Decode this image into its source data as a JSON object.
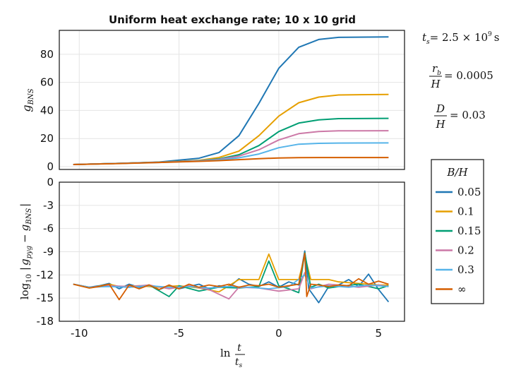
{
  "chart_data": {
    "title": "Uniform heat exchange rate; 10 x 10 grid",
    "colors": {
      "0.05": "#1f77b4",
      "0.1": "#e69f00",
      "0.15": "#009e73",
      "0.2": "#cc79a7",
      "0.3": "#56b4e9",
      "inf": "#d55e00"
    },
    "top": {
      "type": "line",
      "ylabel": "g_BNS",
      "xlim": [
        -11.0,
        6.3
      ],
      "ylim": [
        -2,
        97
      ],
      "yticks": [
        "0",
        "20",
        "40",
        "60",
        "80"
      ],
      "series": [
        {
          "name": "0.05",
          "values": [
            [
              -10.3,
              1.5
            ],
            [
              -8,
              2.3
            ],
            [
              -6,
              3.3
            ],
            [
              -4,
              6
            ],
            [
              -3,
              10
            ],
            [
              -2,
              22
            ],
            [
              -1,
              45
            ],
            [
              0,
              70
            ],
            [
              1,
              85
            ],
            [
              2,
              90.5
            ],
            [
              3,
              92
            ],
            [
              5.5,
              92.4
            ]
          ]
        },
        {
          "name": "0.1",
          "values": [
            [
              -10.3,
              1.5
            ],
            [
              -8,
              2.3
            ],
            [
              -6,
              3.2
            ],
            [
              -4,
              4.5
            ],
            [
              -3,
              6.5
            ],
            [
              -2,
              11
            ],
            [
              -1,
              22
            ],
            [
              0,
              36
            ],
            [
              1,
              45.5
            ],
            [
              2,
              49.5
            ],
            [
              3,
              51
            ],
            [
              5.5,
              51.4
            ]
          ]
        },
        {
          "name": "0.15",
          "values": [
            [
              -10.3,
              1.5
            ],
            [
              -8,
              2.3
            ],
            [
              -6,
              3.2
            ],
            [
              -4,
              4.3
            ],
            [
              -3,
              5.5
            ],
            [
              -2,
              8.5
            ],
            [
              -1,
              15
            ],
            [
              0,
              25
            ],
            [
              1,
              31
            ],
            [
              2,
              33.3
            ],
            [
              3,
              34.2
            ],
            [
              5.5,
              34.4
            ]
          ]
        },
        {
          "name": "0.2",
          "values": [
            [
              -10.3,
              1.5
            ],
            [
              -8,
              2.3
            ],
            [
              -6,
              3.1
            ],
            [
              -4,
              4.2
            ],
            [
              -3,
              5.2
            ],
            [
              -2,
              7.5
            ],
            [
              -1,
              12
            ],
            [
              0,
              19
            ],
            [
              1,
              23.5
            ],
            [
              2,
              25
            ],
            [
              3,
              25.5
            ],
            [
              5.5,
              25.6
            ]
          ]
        },
        {
          "name": "0.3",
          "values": [
            [
              -10.3,
              1.5
            ],
            [
              -8,
              2.3
            ],
            [
              -6,
              3.0
            ],
            [
              -4,
              4
            ],
            [
              -3,
              4.8
            ],
            [
              -2,
              6.3
            ],
            [
              -1,
              9
            ],
            [
              0,
              13.5
            ],
            [
              1,
              16
            ],
            [
              2,
              16.6
            ],
            [
              3,
              16.8
            ],
            [
              5.5,
              16.9
            ]
          ]
        },
        {
          "name": "inf",
          "values": [
            [
              -10.3,
              1.5
            ],
            [
              -8,
              2.2
            ],
            [
              -6,
              3
            ],
            [
              -4,
              3.8
            ],
            [
              -3,
              4.3
            ],
            [
              -2,
              5
            ],
            [
              -1,
              5.7
            ],
            [
              0,
              6.2
            ],
            [
              1,
              6.4
            ],
            [
              2,
              6.5
            ],
            [
              3,
              6.5
            ],
            [
              5.5,
              6.5
            ]
          ]
        }
      ]
    },
    "bottom": {
      "type": "line",
      "ylabel": "log10 |g_pyg − g_BNS|",
      "xlabel": "ln t/t_s",
      "xlim": [
        -11.0,
        6.3
      ],
      "ylim": [
        -18,
        0
      ],
      "xticks": [
        "-10",
        "-5",
        "0",
        "5"
      ],
      "yticks": [
        "-18",
        "-15",
        "-12",
        "-9",
        "-6",
        "-3",
        "0"
      ],
      "series": [
        {
          "name": "0.05",
          "values": [
            [
              -10.3,
              -13.2
            ],
            [
              -9.5,
              -13.6
            ],
            [
              -9,
              -13.4
            ],
            [
              -8.5,
              -13.1
            ],
            [
              -8,
              -13.8
            ],
            [
              -7.5,
              -13.2
            ],
            [
              -7,
              -13.6
            ],
            [
              -6.5,
              -13.3
            ],
            [
              -6,
              -13.9
            ],
            [
              -5.5,
              -13.4
            ],
            [
              -5,
              -13.8
            ],
            [
              -4.5,
              -13.5
            ],
            [
              -4,
              -13.2
            ],
            [
              -3.5,
              -13.8
            ],
            [
              -3,
              -13.4
            ],
            [
              -2.5,
              -13.6
            ],
            [
              -2,
              -12.5
            ],
            [
              -1.5,
              -13.2
            ],
            [
              -1,
              -13.5
            ],
            [
              -0.5,
              -12.9
            ],
            [
              0,
              -13.6
            ],
            [
              0.5,
              -12.9
            ],
            [
              1,
              -13.3
            ],
            [
              1.3,
              -8.9
            ],
            [
              1.5,
              -13.8
            ],
            [
              2,
              -15.6
            ],
            [
              2.5,
              -13.5
            ],
            [
              3,
              -13.3
            ],
            [
              3.5,
              -12.6
            ],
            [
              4,
              -13.5
            ],
            [
              4.5,
              -11.9
            ],
            [
              5,
              -13.9
            ],
            [
              5.5,
              -15.5
            ]
          ]
        },
        {
          "name": "0.1",
          "values": [
            [
              -10.3,
              -13.2
            ],
            [
              -9.5,
              -13.7
            ],
            [
              -8.5,
              -13.2
            ],
            [
              -8,
              -13.5
            ],
            [
              -7,
              -13.4
            ],
            [
              -6,
              -13.6
            ],
            [
              -5,
              -13.4
            ],
            [
              -4,
              -13.7
            ],
            [
              -3,
              -14.2
            ],
            [
              -2,
              -12.6
            ],
            [
              -1,
              -12.6
            ],
            [
              -0.5,
              -9.3
            ],
            [
              0,
              -12.6
            ],
            [
              1,
              -12.6
            ],
            [
              1.3,
              -9.5
            ],
            [
              1.6,
              -12.6
            ],
            [
              2.5,
              -12.6
            ],
            [
              3,
              -12.9
            ],
            [
              4,
              -13.1
            ],
            [
              5,
              -13.3
            ],
            [
              5.5,
              -13.3
            ]
          ]
        },
        {
          "name": "0.15",
          "values": [
            [
              -10.3,
              -13.2
            ],
            [
              -9.5,
              -13.6
            ],
            [
              -8.5,
              -13.4
            ],
            [
              -7.5,
              -13.6
            ],
            [
              -6.5,
              -13.3
            ],
            [
              -5.5,
              -14.8
            ],
            [
              -5,
              -13.4
            ],
            [
              -4,
              -14.1
            ],
            [
              -3,
              -13.6
            ],
            [
              -2,
              -13.7
            ],
            [
              -1,
              -13.5
            ],
            [
              -0.5,
              -10.2
            ],
            [
              0,
              -13.4
            ],
            [
              0.5,
              -13.8
            ],
            [
              1,
              -14.3
            ],
            [
              1.3,
              -9.1
            ],
            [
              1.6,
              -13.6
            ],
            [
              2,
              -13.2
            ],
            [
              2.5,
              -13.7
            ],
            [
              3,
              -13.5
            ],
            [
              4,
              -13.2
            ],
            [
              4.5,
              -13.5
            ],
            [
              5,
              -13.8
            ],
            [
              5.5,
              -13.4
            ]
          ]
        },
        {
          "name": "0.2",
          "values": [
            [
              -10.3,
              -13.2
            ],
            [
              -9.5,
              -13.6
            ],
            [
              -8.5,
              -13.4
            ],
            [
              -7.5,
              -13.5
            ],
            [
              -6.5,
              -13.3
            ],
            [
              -5.5,
              -13.8
            ],
            [
              -4.5,
              -13.4
            ],
            [
              -3.5,
              -13.9
            ],
            [
              -2.5,
              -15.1
            ],
            [
              -2,
              -13.6
            ],
            [
              -1,
              -13.7
            ],
            [
              0,
              -14.1
            ],
            [
              1,
              -13.8
            ],
            [
              1.3,
              -11.7
            ],
            [
              1.6,
              -13.8
            ],
            [
              2.5,
              -13.2
            ],
            [
              3,
              -13.3
            ],
            [
              4,
              -13.6
            ],
            [
              5,
              -13.3
            ],
            [
              5.5,
              -13.5
            ]
          ]
        },
        {
          "name": "0.3",
          "values": [
            [
              -10.3,
              -13.2
            ],
            [
              -9.5,
              -13.6
            ],
            [
              -8.5,
              -13.5
            ],
            [
              -7.5,
              -13.6
            ],
            [
              -6.5,
              -13.4
            ],
            [
              -5.5,
              -13.6
            ],
            [
              -4.5,
              -13.5
            ],
            [
              -3.5,
              -13.7
            ],
            [
              -2.5,
              -13.5
            ],
            [
              -1.5,
              -13.6
            ],
            [
              -0.5,
              -13.8
            ],
            [
              0.5,
              -13.5
            ],
            [
              1.3,
              -12
            ],
            [
              1.6,
              -13.7
            ],
            [
              2.5,
              -13.4
            ],
            [
              3.5,
              -13.6
            ],
            [
              4.5,
              -13.3
            ],
            [
              5.5,
              -13.5
            ]
          ]
        },
        {
          "name": "inf",
          "values": [
            [
              -10.3,
              -13.2
            ],
            [
              -9.5,
              -13.7
            ],
            [
              -9,
              -13.5
            ],
            [
              -8.5,
              -13.2
            ],
            [
              -8,
              -15.2
            ],
            [
              -7.5,
              -13.3
            ],
            [
              -7,
              -13.8
            ],
            [
              -6.5,
              -13.3
            ],
            [
              -6,
              -13.9
            ],
            [
              -5.5,
              -13.3
            ],
            [
              -5,
              -13.8
            ],
            [
              -4.5,
              -13.2
            ],
            [
              -4,
              -13.6
            ],
            [
              -3.5,
              -13.3
            ],
            [
              -3,
              -13.5
            ],
            [
              -2.5,
              -13.2
            ],
            [
              -2,
              -13.6
            ],
            [
              -1.5,
              -13.3
            ],
            [
              -1,
              -13.4
            ],
            [
              -0.5,
              -13.2
            ],
            [
              0,
              -13.6
            ],
            [
              0.5,
              -13.4
            ],
            [
              1,
              -13.2
            ],
            [
              1.3,
              -9.2
            ],
            [
              1.4,
              -14.8
            ],
            [
              1.6,
              -13.2
            ],
            [
              2,
              -13.3
            ],
            [
              2.5,
              -13.5
            ],
            [
              3,
              -13.3
            ],
            [
              3.5,
              -13.4
            ],
            [
              4,
              -12.5
            ],
            [
              4.5,
              -13.2
            ],
            [
              5,
              -12.8
            ],
            [
              5.5,
              -13.2
            ]
          ]
        }
      ]
    },
    "annotations": {
      "ts_lhs": "t",
      "ts_sub": "s",
      "ts_rhs": "= 2.5 × 10",
      "ts_exp": "9",
      "ts_unit": "s",
      "rb_num": "r",
      "rb_sub": "b",
      "rb_den": "H",
      "rb_val": "= 0.0005",
      "d_num": "D",
      "d_den": "H",
      "d_val": "= 0.03"
    },
    "legend": {
      "title": "B/H",
      "position": "right",
      "entries": [
        {
          "key": "0.05",
          "label": "0.05"
        },
        {
          "key": "0.1",
          "label": "0.1"
        },
        {
          "key": "0.15",
          "label": "0.15"
        },
        {
          "key": "0.2",
          "label": "0.2"
        },
        {
          "key": "0.3",
          "label": "0.3"
        },
        {
          "key": "inf",
          "label": "∞"
        }
      ]
    },
    "labels": {
      "top_ylabel_main": "g",
      "top_ylabel_sub": "BNS",
      "bot_ylabel_pre": "log",
      "bot_ylabel_base": "10",
      "bot_ylabel_bar_l": "|",
      "bot_ylabel_g1": "g",
      "bot_ylabel_sub1": "pyg",
      "bot_ylabel_minus": "−",
      "bot_ylabel_g2": "g",
      "bot_ylabel_sub2": "BNS",
      "bot_ylabel_bar_r": "|",
      "xlabel_ln": "ln",
      "xlabel_num": "t",
      "xlabel_den": "t",
      "xlabel_den_sub": "s"
    }
  }
}
